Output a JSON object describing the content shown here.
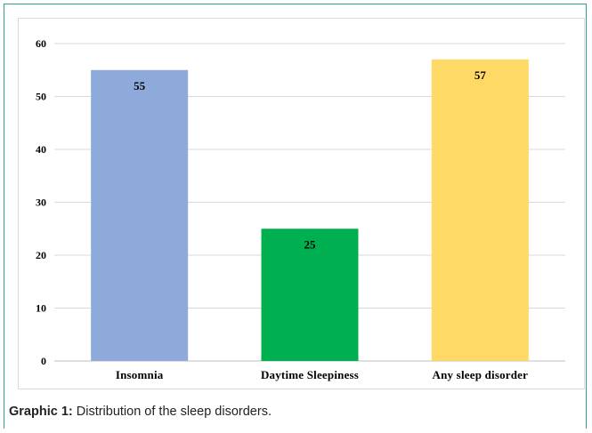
{
  "chart_data": {
    "type": "bar",
    "categories": [
      "Insomnia",
      "Daytime Sleepiness",
      "Any sleep disorder"
    ],
    "values": [
      55,
      25,
      57
    ],
    "colors": [
      "#8eaadb",
      "#00b050",
      "#ffd966"
    ],
    "ylim": [
      0,
      60
    ],
    "yticks": [
      0,
      10,
      20,
      30,
      40,
      50,
      60
    ],
    "grid": true,
    "data_labels": [
      "55",
      "25",
      "57"
    ]
  },
  "caption": {
    "label": "Graphic 1:",
    "text": " Distribution of the sleep disorders."
  }
}
